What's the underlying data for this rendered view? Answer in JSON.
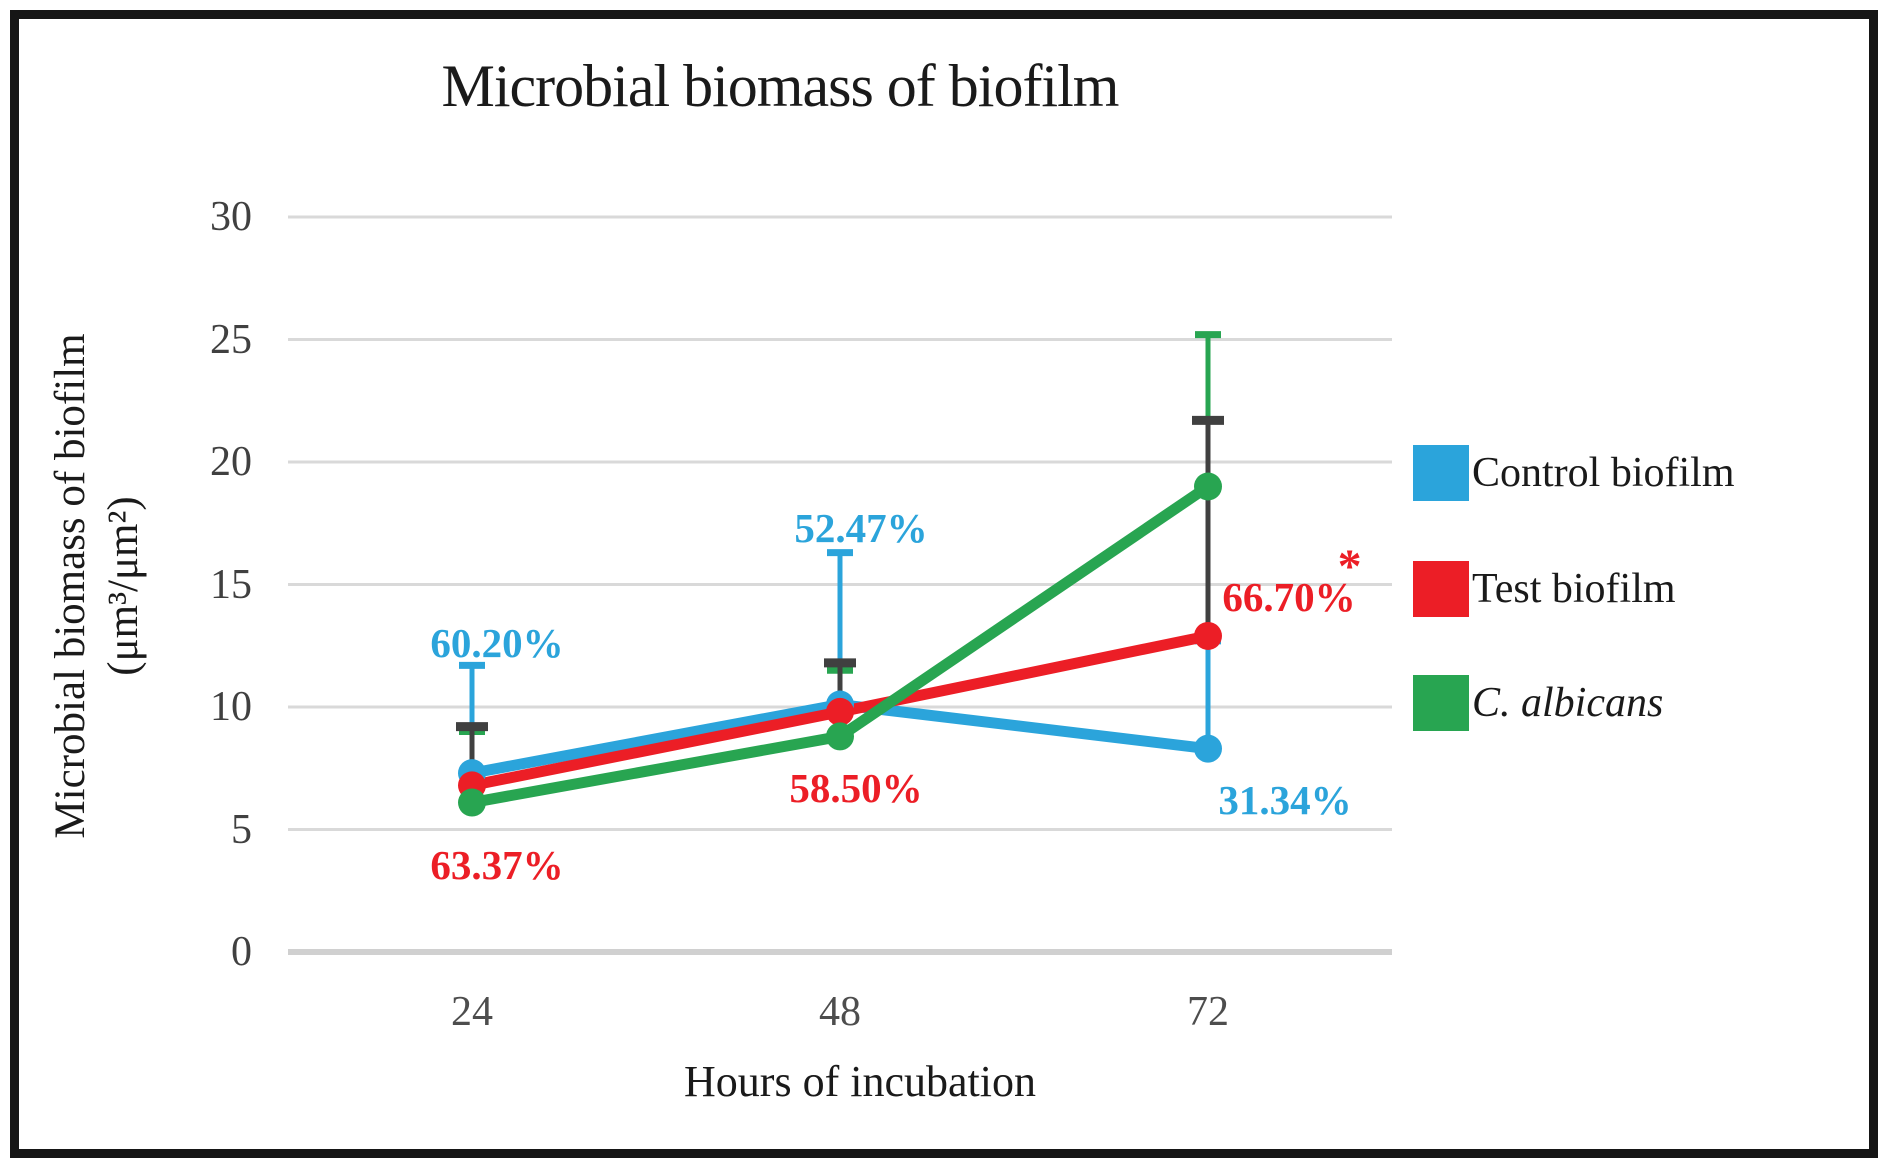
{
  "figure": {
    "title": "Microbial biomass of biofilm",
    "x_axis_title": "Hours of incubation",
    "y_axis_title_line1": "Microbial biomass of biofilm",
    "y_axis_title_line2": "(μm³/μm²)"
  },
  "colors": {
    "control_blue": "#2BA4DB",
    "test_red": "#EC1E26",
    "albicans_green": "#28A551",
    "error_bar_dark": "#404040",
    "gridline": "#D9D9D9",
    "axis_line": "#D0D0D0",
    "title_text": "#1a1a1a",
    "tick_text": "#404040"
  },
  "legend": {
    "position": "right",
    "items": [
      {
        "label": "Control biofilm",
        "color": "#2BA4DB",
        "italic": false
      },
      {
        "label": "Test biofilm",
        "color": "#EC1E26",
        "italic": false
      },
      {
        "label": "C. albicans",
        "color": "#28A551",
        "italic": true
      }
    ]
  },
  "chart_data": {
    "type": "line",
    "title": "Microbial biomass of biofilm",
    "xlabel": "Hours of incubation",
    "ylabel": "Microbial biomass of biofilm (μm³/μm²)",
    "categories": [
      "24",
      "48",
      "72"
    ],
    "y_ticks": [
      0,
      5,
      10,
      15,
      20,
      25,
      30
    ],
    "ylim": [
      0,
      30
    ],
    "grid": true,
    "legend_position": "right",
    "series": [
      {
        "name": "Control biofilm",
        "color": "#2BA4DB",
        "marker": "circle",
        "values": [
          7.3,
          10.1,
          8.3
        ],
        "error_top": [
          11.7,
          16.3,
          12.7
        ],
        "error_bar_color": "#2BA4DB"
      },
      {
        "name": "Test biofilm",
        "color": "#EC1E26",
        "marker": "circle",
        "values": [
          6.8,
          9.8,
          12.9
        ],
        "error_top": [
          9.2,
          11.8,
          21.7
        ],
        "error_bar_color": "#404040"
      },
      {
        "name": "C. albicans",
        "color": "#28A551",
        "marker": "circle",
        "values": [
          6.1,
          8.8,
          19.0
        ],
        "error_top": [
          9.0,
          11.5,
          25.2
        ],
        "error_bar_color": "#28A551"
      }
    ],
    "annotations": [
      {
        "text": "60.20%",
        "color": "#2BA4DB",
        "series": "Control biofilm",
        "category": "24",
        "value": 12.6
      },
      {
        "text": "52.47%",
        "color": "#2BA4DB",
        "series": "Control biofilm",
        "category": "48",
        "value": 17.3
      },
      {
        "text": "31.34%",
        "color": "#2BA4DB",
        "series": "Control biofilm",
        "category": "72",
        "value": 6.2
      },
      {
        "text": "63.37%",
        "color": "#EC1E26",
        "series": "Test biofilm",
        "category": "24",
        "value": 3.55
      },
      {
        "text": "58.50%",
        "color": "#EC1E26",
        "series": "Test biofilm",
        "category": "48",
        "value": 6.7
      },
      {
        "text": "66.70%",
        "color": "#EC1E26",
        "series": "Test biofilm",
        "category": "72",
        "value": 14.5,
        "asterisk": "*"
      }
    ]
  }
}
